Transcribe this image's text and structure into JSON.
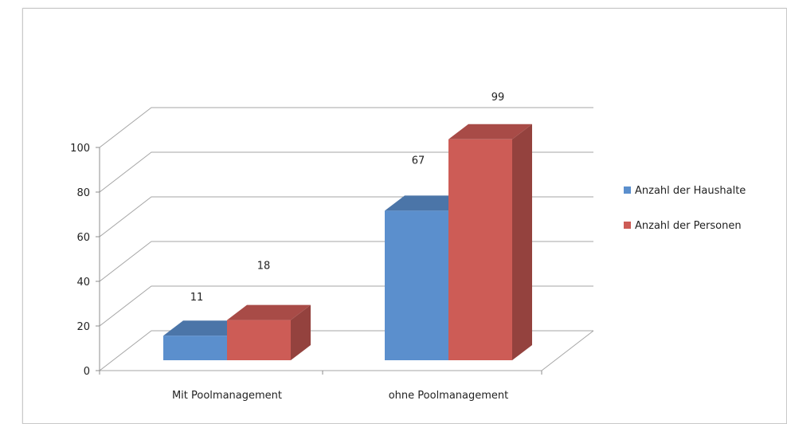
{
  "chart_data": {
    "type": "bar",
    "style": "3d-clustered-column",
    "categories": [
      "Mit Poolmanagement",
      "ohne Poolmanagement"
    ],
    "series": [
      {
        "name": "Anzahl der Haushalte",
        "values": [
          11,
          67
        ],
        "color": "#5b8fcd"
      },
      {
        "name": "Anzahl der Personen",
        "values": [
          18,
          99
        ],
        "color": "#cd5c56"
      }
    ],
    "y_ticks": [
      "0",
      "20",
      "40",
      "60",
      "80",
      "100"
    ],
    "ylim": [
      0,
      100
    ],
    "data_labels": true,
    "grid": true,
    "legend_position": "right"
  }
}
